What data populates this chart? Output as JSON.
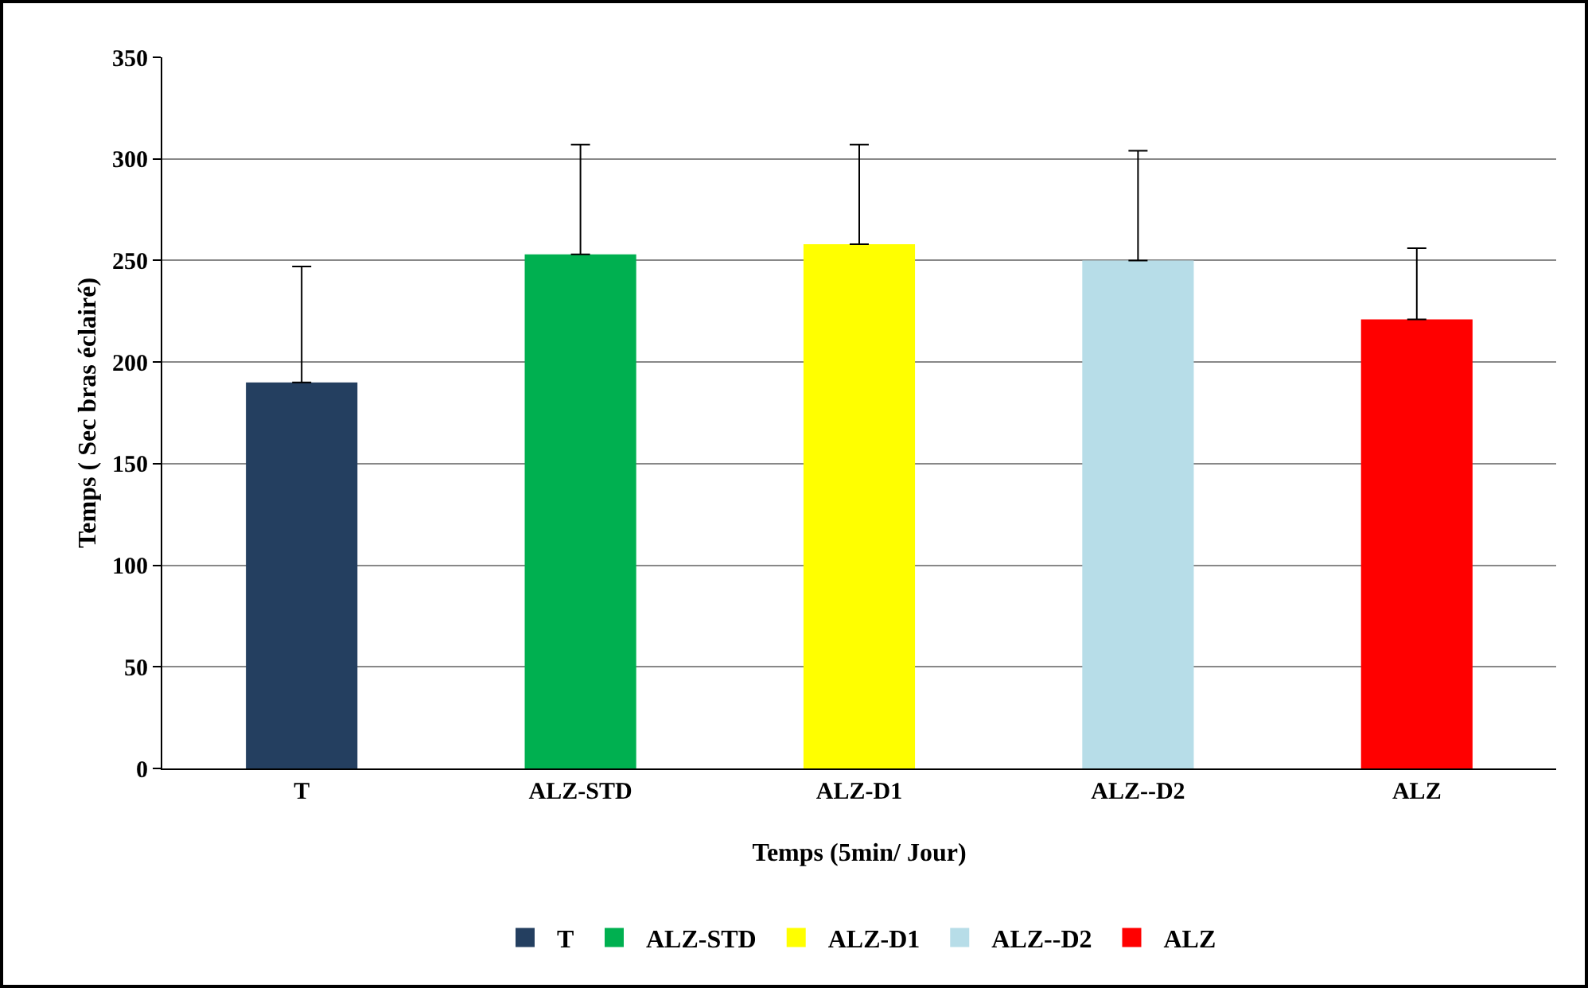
{
  "chart_data": {
    "type": "bar",
    "xlabel": "Temps (5min/ Jour)",
    "ylabel": "Temps ( Sec bras éclairé)",
    "categories": [
      "T",
      "ALZ-STD",
      "ALZ-D1",
      "ALZ--D2",
      "ALZ"
    ],
    "series": [
      {
        "name": "T",
        "color": "#243f60",
        "values": [
          190,
          null,
          null,
          null,
          null
        ],
        "errors": [
          [
            190,
            247
          ],
          null,
          null,
          null,
          null
        ]
      },
      {
        "name": "ALZ-STD",
        "color": "#00b050",
        "values": [
          null,
          253,
          null,
          null,
          null
        ],
        "errors": [
          null,
          [
            253,
            307
          ],
          null,
          null,
          null
        ]
      },
      {
        "name": "ALZ-D1",
        "color": "#ffff00",
        "values": [
          null,
          null,
          258,
          null,
          null
        ],
        "errors": [
          null,
          null,
          [
            258,
            307
          ],
          null,
          null
        ]
      },
      {
        "name": "ALZ--D2",
        "color": "#b7dde8",
        "values": [
          null,
          null,
          null,
          250,
          null
        ],
        "errors": [
          null,
          null,
          null,
          [
            250,
            304
          ],
          null
        ]
      },
      {
        "name": "ALZ",
        "color": "#ff0000",
        "values": [
          null,
          null,
          null,
          null,
          221
        ],
        "errors": [
          null,
          null,
          null,
          null,
          [
            221,
            256
          ]
        ]
      }
    ],
    "ylim": [
      0,
      350
    ],
    "yticks": [
      0,
      50,
      100,
      150,
      200,
      250,
      300,
      350
    ],
    "grid": "y",
    "legend": "bottom"
  }
}
